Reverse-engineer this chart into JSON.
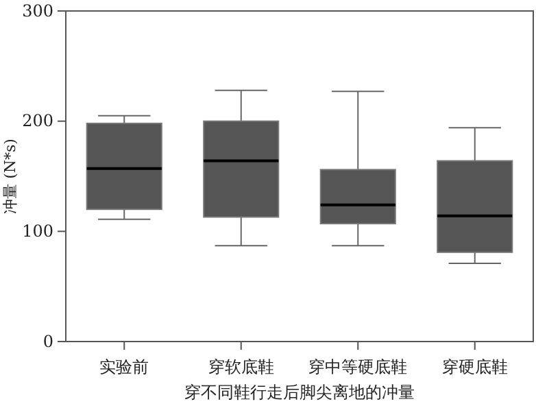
{
  "chart_data": {
    "type": "box",
    "xlabel": "穿不同鞋行走后脚尖离地的冲量",
    "ylabel": "冲量 (N*s)",
    "categories": [
      "实验前",
      "穿软底鞋",
      "穿中等硬底鞋",
      "穿硬底鞋"
    ],
    "boxes": [
      {
        "low": 111,
        "q1": 120,
        "median": 157,
        "q3": 198,
        "high": 205
      },
      {
        "low": 87,
        "q1": 113,
        "median": 164,
        "q3": 200,
        "high": 228
      },
      {
        "low": 87,
        "q1": 107,
        "median": 124,
        "q3": 156,
        "high": 227
      },
      {
        "low": 71,
        "q1": 81,
        "median": 114,
        "q3": 164,
        "high": 194
      }
    ],
    "color": "#555555",
    "ylim": [
      0,
      300
    ],
    "yticks": [
      0,
      100,
      200,
      300
    ],
    "grid": false
  }
}
